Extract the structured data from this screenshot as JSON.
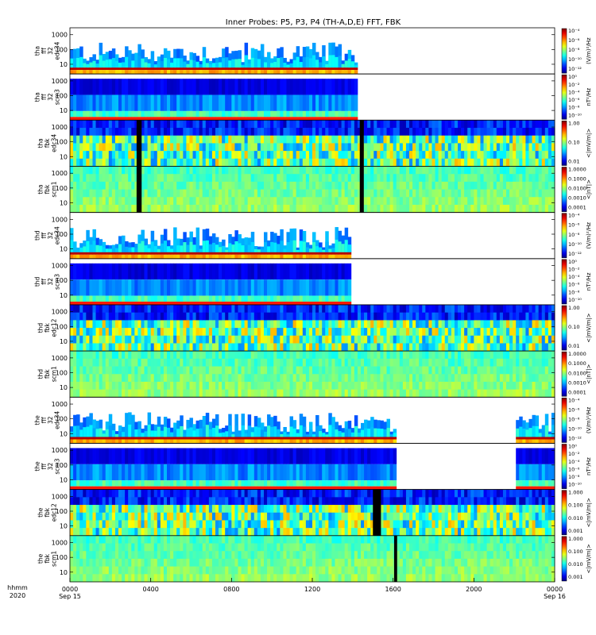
{
  "chart_data": {
    "type": "heatmap",
    "title": "Inner Probes: P5, P3, P4 (TH-A,D,E) FFT, FBK",
    "xaxis": {
      "label_lines": [
        "hhmm",
        "2020"
      ],
      "start_hour": 0,
      "end_hour": 24,
      "ticks": [
        {
          "hour": 0,
          "label": "0000",
          "sub": "Sep 15"
        },
        {
          "hour": 4,
          "label": "0400",
          "sub": ""
        },
        {
          "hour": 8,
          "label": "0800",
          "sub": ""
        },
        {
          "hour": 12,
          "label": "1200",
          "sub": ""
        },
        {
          "hour": 16,
          "label": "1600",
          "sub": ""
        },
        {
          "hour": 20,
          "label": "2000",
          "sub": ""
        },
        {
          "hour": 24,
          "label": "0000",
          "sub": "Sep 16"
        }
      ]
    },
    "freq_ticks": [
      "1000",
      "100",
      "10"
    ],
    "colorbars": {
      "fft_e": {
        "unit": "(V/m)²/Hz",
        "labels": [
          "10⁻⁴",
          "10⁻⁶",
          "10⁻⁸",
          "10⁻¹⁰",
          "10⁻¹²"
        ]
      },
      "fft_b": {
        "unit": "nT²/Hz",
        "labels": [
          "10⁰",
          "10⁻²",
          "10⁻⁴",
          "10⁻⁶",
          "10⁻⁸",
          "10⁻¹⁰"
        ]
      },
      "fbk_e": {
        "unit": "<|mV/m|>",
        "labels": [
          "1.00",
          "0.10",
          "0.01"
        ]
      },
      "fbk_e_fine": {
        "unit": "<|mV/m|>",
        "labels": [
          "1.000",
          "0.100",
          "0.010",
          "0.001"
        ]
      },
      "fbk_b": {
        "unit": "<|nT|>",
        "labels": [
          "1.0000",
          "0.1000",
          "0.0100",
          "0.0010",
          "0.0001"
        ]
      }
    },
    "panels": [
      {
        "ylabel": [
          "tha",
          "fff",
          "32",
          "edc34"
        ],
        "cb": "fft_e",
        "kind": "fft_e",
        "coverage": [
          [
            0,
            14.2
          ]
        ],
        "gaps": []
      },
      {
        "ylabel": [
          "tha",
          "fff",
          "32",
          "scm3"
        ],
        "cb": "fft_b",
        "kind": "fft_b",
        "coverage": [
          [
            0,
            14.2
          ]
        ],
        "gaps": []
      },
      {
        "ylabel": [
          "tha",
          "fbk",
          "edc34"
        ],
        "cb": "fbk_e",
        "kind": "fbk_e",
        "coverage": [
          [
            0,
            24
          ]
        ],
        "gaps": [
          [
            3.3,
            3.55
          ],
          [
            14.35,
            14.55
          ]
        ]
      },
      {
        "ylabel": [
          "tha",
          "fbk",
          "scm1"
        ],
        "cb": "fbk_b",
        "kind": "fbk_b",
        "coverage": [
          [
            0,
            24
          ]
        ],
        "gaps": [
          [
            3.3,
            3.55
          ],
          [
            14.35,
            14.55
          ]
        ]
      },
      {
        "ylabel": [
          "thd",
          "fff",
          "32",
          "edc34"
        ],
        "cb": "fft_e",
        "kind": "fft_e",
        "coverage": [
          [
            0,
            13.9
          ]
        ],
        "gaps": []
      },
      {
        "ylabel": [
          "thd",
          "fff",
          "32",
          "scm3"
        ],
        "cb": "fft_b",
        "kind": "fft_b",
        "coverage": [
          [
            0,
            13.9
          ]
        ],
        "gaps": []
      },
      {
        "ylabel": [
          "thd",
          "fbk",
          "edc12"
        ],
        "cb": "fbk_e",
        "kind": "fbk_e",
        "coverage": [
          [
            0,
            24
          ]
        ],
        "gaps": []
      },
      {
        "ylabel": [
          "thd",
          "fbk",
          "scm1"
        ],
        "cb": "fbk_b",
        "kind": "fbk_b",
        "coverage": [
          [
            0,
            24
          ]
        ],
        "gaps": []
      },
      {
        "ylabel": [
          "the",
          "fff",
          "32",
          "edc34"
        ],
        "cb": "fft_e",
        "kind": "fft_e",
        "coverage": [
          [
            0,
            16.1
          ],
          [
            22.1,
            24
          ]
        ],
        "gaps": []
      },
      {
        "ylabel": [
          "the",
          "fff",
          "32",
          "scm3"
        ],
        "cb": "fft_b",
        "kind": "fft_b",
        "coverage": [
          [
            0,
            16.1
          ],
          [
            22.1,
            24
          ]
        ],
        "gaps": []
      },
      {
        "ylabel": [
          "the",
          "fbk",
          "edc12"
        ],
        "cb": "fbk_e_fine",
        "kind": "fbk_e",
        "coverage": [
          [
            0,
            24
          ]
        ],
        "gaps": [
          [
            15.0,
            15.4
          ]
        ]
      },
      {
        "ylabel": [
          "the",
          "fbk",
          "scm1"
        ],
        "cb": "fbk_e_fine",
        "kind": "fbk_b",
        "coverage": [
          [
            0,
            24
          ]
        ],
        "gaps": [
          [
            16.05,
            16.2
          ]
        ]
      }
    ]
  }
}
